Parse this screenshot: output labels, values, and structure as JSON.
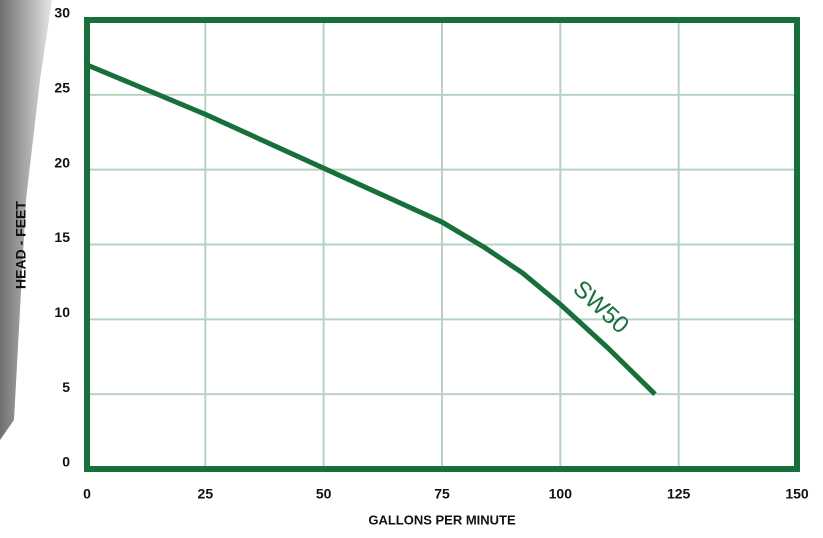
{
  "chart_data": {
    "type": "line",
    "x_label": "GALLONS PER MINUTE",
    "y_label": "HEAD - FEET",
    "x": [
      0,
      25,
      50,
      75,
      84,
      92,
      100,
      110,
      120
    ],
    "series": [
      {
        "name": "SW50",
        "color": "#17703c",
        "values": [
          27,
          23.7,
          20.1,
          16.5,
          14.8,
          13.1,
          11,
          8.1,
          5
        ]
      }
    ],
    "xlim": [
      0,
      150
    ],
    "xticks": [
      0,
      25,
      50,
      75,
      100,
      125,
      150
    ],
    "ylim": [
      0,
      30
    ],
    "yticks": [
      0,
      5,
      10,
      15,
      20,
      25,
      30
    ],
    "grid": true,
    "frame_color": "#17703c"
  }
}
